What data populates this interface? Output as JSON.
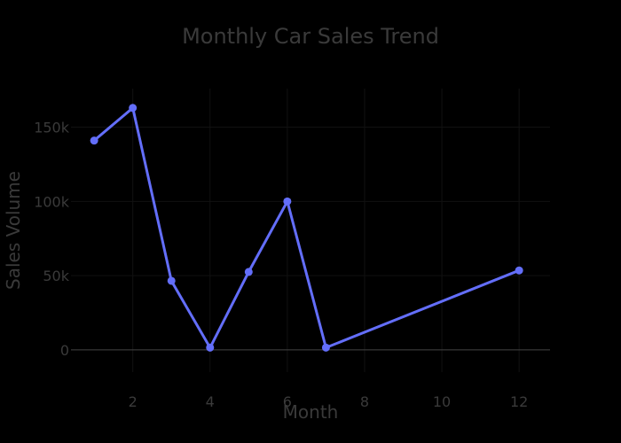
{
  "chart_data": {
    "type": "line",
    "title": "Monthly Car Sales Trend",
    "xlabel": "Month",
    "ylabel": "Sales Volume",
    "xlim": [
      0.4,
      12.8
    ],
    "ylim": [
      -15000,
      176000
    ],
    "x_ticks": [
      2,
      4,
      6,
      8,
      10,
      12
    ],
    "y_ticks": [
      0,
      50000,
      100000,
      150000
    ],
    "y_tick_labels": [
      "0",
      "50k",
      "100k",
      "150k"
    ],
    "grid": true,
    "series": [
      {
        "x": [
          1,
          2,
          3,
          4,
          5,
          6,
          7,
          12
        ],
        "values": [
          141000,
          163000,
          46500,
          1500,
          52500,
          100000,
          1500,
          53500
        ],
        "color": "#636efa"
      }
    ]
  }
}
